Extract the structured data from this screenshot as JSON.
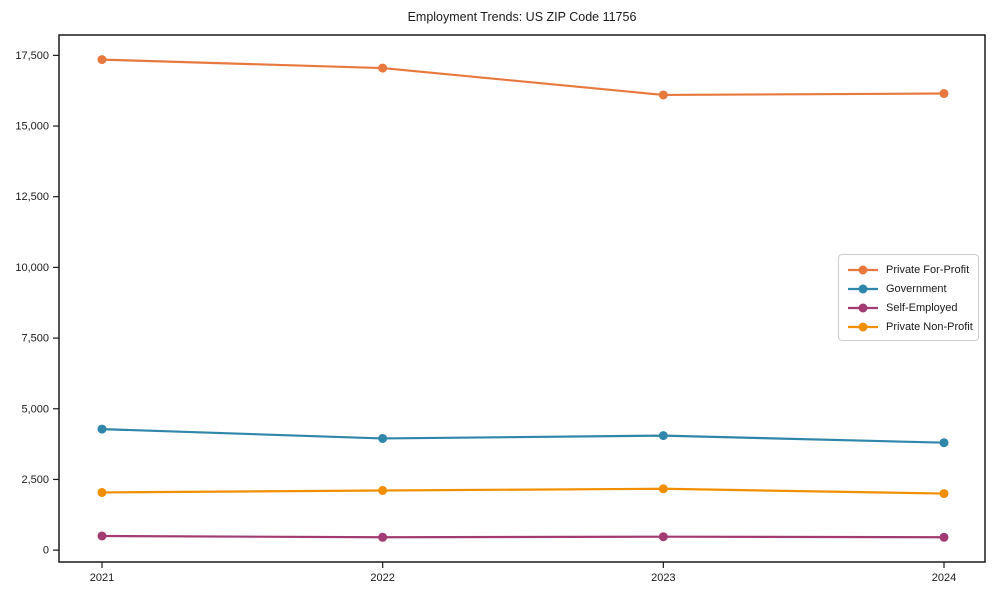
{
  "figure": {
    "background_color": "#ffffff",
    "axis_color": "#1a1a1a",
    "legend_border_color": "#cccccc"
  },
  "chart_data": {
    "type": "line",
    "title": "Employment Trends: US ZIP Code 11756",
    "xlabel": "",
    "ylabel": "",
    "categories": [
      "2021",
      "2022",
      "2023",
      "2024"
    ],
    "series": [
      {
        "name": "Private For-Profit",
        "color": "#E8793E",
        "values": [
          17350,
          17050,
          16100,
          16150
        ]
      },
      {
        "name": "Government",
        "color": "#2E86AB",
        "values": [
          4280,
          3950,
          4050,
          3800
        ]
      },
      {
        "name": "Self-Employed",
        "color": "#A23B72",
        "values": [
          500,
          455,
          475,
          455
        ]
      },
      {
        "name": "Private Non-Profit",
        "color": "#F18F01",
        "values": [
          2040,
          2110,
          2170,
          2000
        ]
      }
    ],
    "yticks": {
      "values": [
        0,
        2500,
        5000,
        7500,
        10000,
        12500,
        15000,
        17500
      ],
      "labels": [
        "0",
        "2,500",
        "5,000",
        "7,500",
        "10,000",
        "12,500",
        "15,000",
        "17,500"
      ]
    },
    "ylim": [
      -420,
      18220
    ],
    "grid": false,
    "marker": "circle",
    "legend_position": "center right"
  }
}
